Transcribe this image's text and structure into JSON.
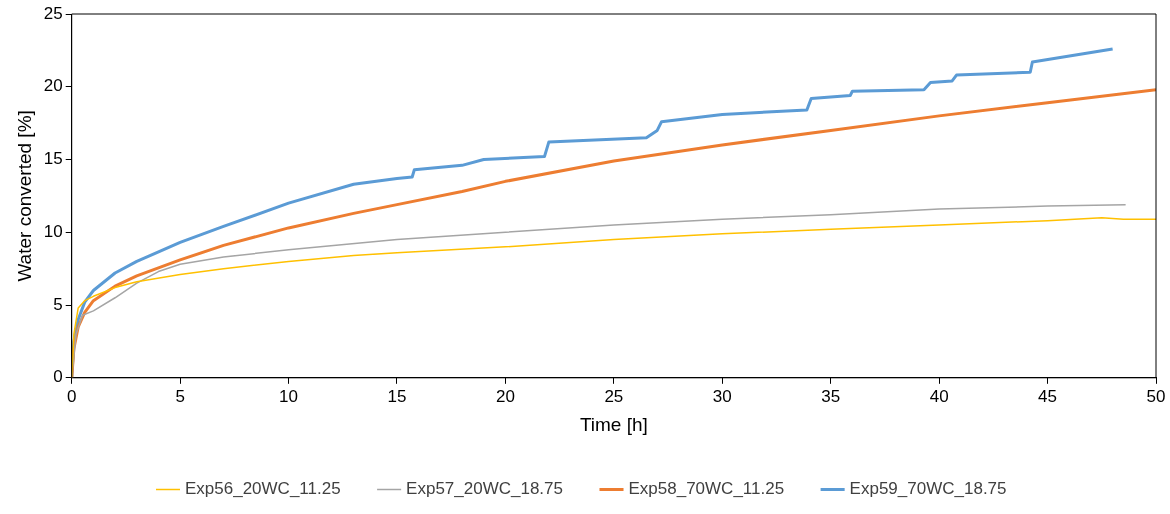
{
  "chart_data": {
    "type": "line",
    "xlabel": "Time [h]",
    "ylabel": "Water converted [%]",
    "xlim": [
      0,
      50
    ],
    "xticks": [
      0,
      5,
      10,
      15,
      20,
      25,
      30,
      35,
      40,
      45,
      50
    ],
    "ylim": [
      0,
      25
    ],
    "yticks": [
      0,
      5,
      10,
      15,
      20,
      25
    ],
    "grid": false,
    "legend": "bottom",
    "marker": "none",
    "line_style": "solid",
    "series": [
      {
        "name": "Exp56_20WC_11.25",
        "color": "#ffc000",
        "x": [
          0,
          0.1,
          0.3,
          0.6,
          1,
          2,
          3,
          5,
          7,
          10,
          13,
          15,
          20,
          25,
          30,
          35,
          40,
          45,
          47.5,
          48.5,
          50
        ],
        "values": [
          0,
          3,
          4.8,
          5.3,
          5.6,
          6.2,
          6.6,
          7.1,
          7.5,
          8.0,
          8.4,
          8.6,
          9.0,
          9.5,
          9.9,
          10.2,
          10.5,
          10.8,
          11.0,
          10.9,
          10.9
        ]
      },
      {
        "name": "Exp57_20WC_18.75",
        "color": "#a5a5a5",
        "x": [
          0,
          0.2,
          0.5,
          1,
          2,
          3,
          4,
          5,
          7,
          10,
          15,
          20,
          25,
          30,
          35,
          40,
          45,
          48.6
        ],
        "values": [
          0,
          3,
          4.3,
          4.6,
          5.5,
          6.5,
          7.3,
          7.8,
          8.3,
          8.8,
          9.5,
          10.0,
          10.5,
          10.9,
          11.2,
          11.6,
          11.8,
          11.9
        ]
      },
      {
        "name": "Exp58_70WC_11.25",
        "color": "#ed7d31",
        "x": [
          0,
          0.1,
          0.3,
          0.6,
          1,
          2,
          3,
          5,
          7,
          10,
          13,
          15,
          18,
          20,
          25,
          30,
          35,
          40,
          45,
          50
        ],
        "values": [
          0,
          2,
          3.5,
          4.5,
          5.3,
          6.3,
          7.0,
          8.1,
          9.1,
          10.3,
          11.3,
          11.9,
          12.8,
          13.5,
          14.9,
          16.0,
          17.0,
          18.0,
          18.9,
          19.8
        ]
      },
      {
        "name": "Exp59_70WC_18.75",
        "color": "#5b9bd5",
        "x": [
          0,
          0.1,
          0.3,
          0.6,
          1,
          2,
          3,
          5,
          7,
          10,
          13,
          15,
          15.7,
          15.8,
          18,
          19,
          21.8,
          22,
          26.5,
          27,
          27.2,
          30,
          33.9,
          34.1,
          35.9,
          36,
          39.3,
          39.6,
          40.6,
          40.8,
          44.2,
          44.3,
          48
        ],
        "values": [
          0,
          2.5,
          4,
          5.2,
          6.0,
          7.2,
          8.0,
          9.3,
          10.4,
          12.0,
          13.3,
          13.7,
          13.8,
          14.3,
          14.6,
          15.0,
          15.2,
          16.2,
          16.5,
          17.0,
          17.6,
          18.1,
          18.4,
          19.2,
          19.4,
          19.7,
          19.8,
          20.3,
          20.4,
          20.8,
          21.0,
          21.7,
          22.6
        ]
      }
    ]
  }
}
